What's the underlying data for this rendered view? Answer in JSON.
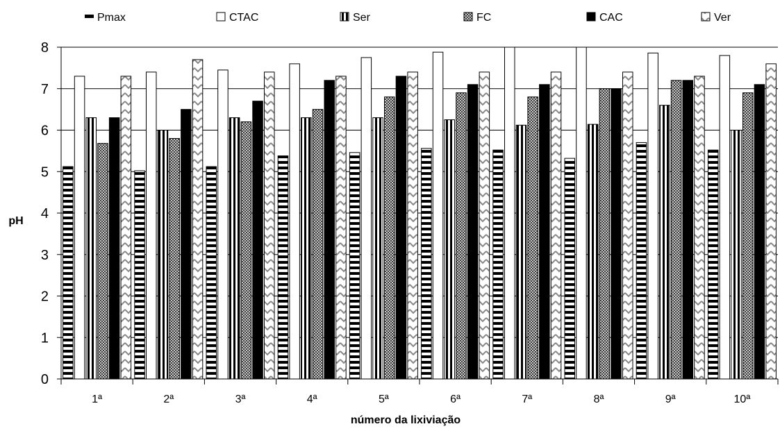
{
  "chart_data": {
    "type": "bar",
    "title": "",
    "xlabel": "número da lixiviação",
    "ylabel": "pH",
    "ylim": [
      0,
      8
    ],
    "y_ticks": [
      "0",
      "1",
      "2",
      "3",
      "4",
      "5",
      "6",
      "7",
      "8"
    ],
    "grid": true,
    "legend_position": "top",
    "categories": [
      "1ª",
      "2ª",
      "3ª",
      "4ª",
      "5ª",
      "6ª",
      "7ª",
      "8ª",
      "9ª",
      "10ª"
    ],
    "series": [
      {
        "name": "Pmax",
        "pattern": "horizontal-dashes",
        "values": [
          5.12,
          5.02,
          5.12,
          5.38,
          5.46,
          5.56,
          5.52,
          5.32,
          5.7,
          5.52
        ]
      },
      {
        "name": "CTAC",
        "pattern": "white",
        "values": [
          7.3,
          7.4,
          7.45,
          7.6,
          7.75,
          7.88,
          8.0,
          8.0,
          7.86,
          7.8
        ]
      },
      {
        "name": "Ser",
        "pattern": "vertical-stripes",
        "values": [
          6.3,
          6.0,
          6.3,
          6.3,
          6.3,
          6.25,
          6.12,
          6.14,
          6.6,
          6.0
        ]
      },
      {
        "name": "FC",
        "pattern": "gray-checker",
        "values": [
          5.68,
          5.8,
          6.2,
          6.5,
          6.8,
          6.9,
          6.8,
          7.0,
          7.2,
          6.9
        ]
      },
      {
        "name": "CAC",
        "pattern": "black",
        "values": [
          6.3,
          6.5,
          6.7,
          7.2,
          7.3,
          7.1,
          7.1,
          7.0,
          7.2,
          7.1
        ]
      },
      {
        "name": "Ver",
        "pattern": "zigzag",
        "values": [
          7.3,
          7.7,
          7.4,
          7.3,
          7.4,
          7.4,
          7.4,
          7.4,
          7.3,
          7.6
        ]
      }
    ]
  }
}
